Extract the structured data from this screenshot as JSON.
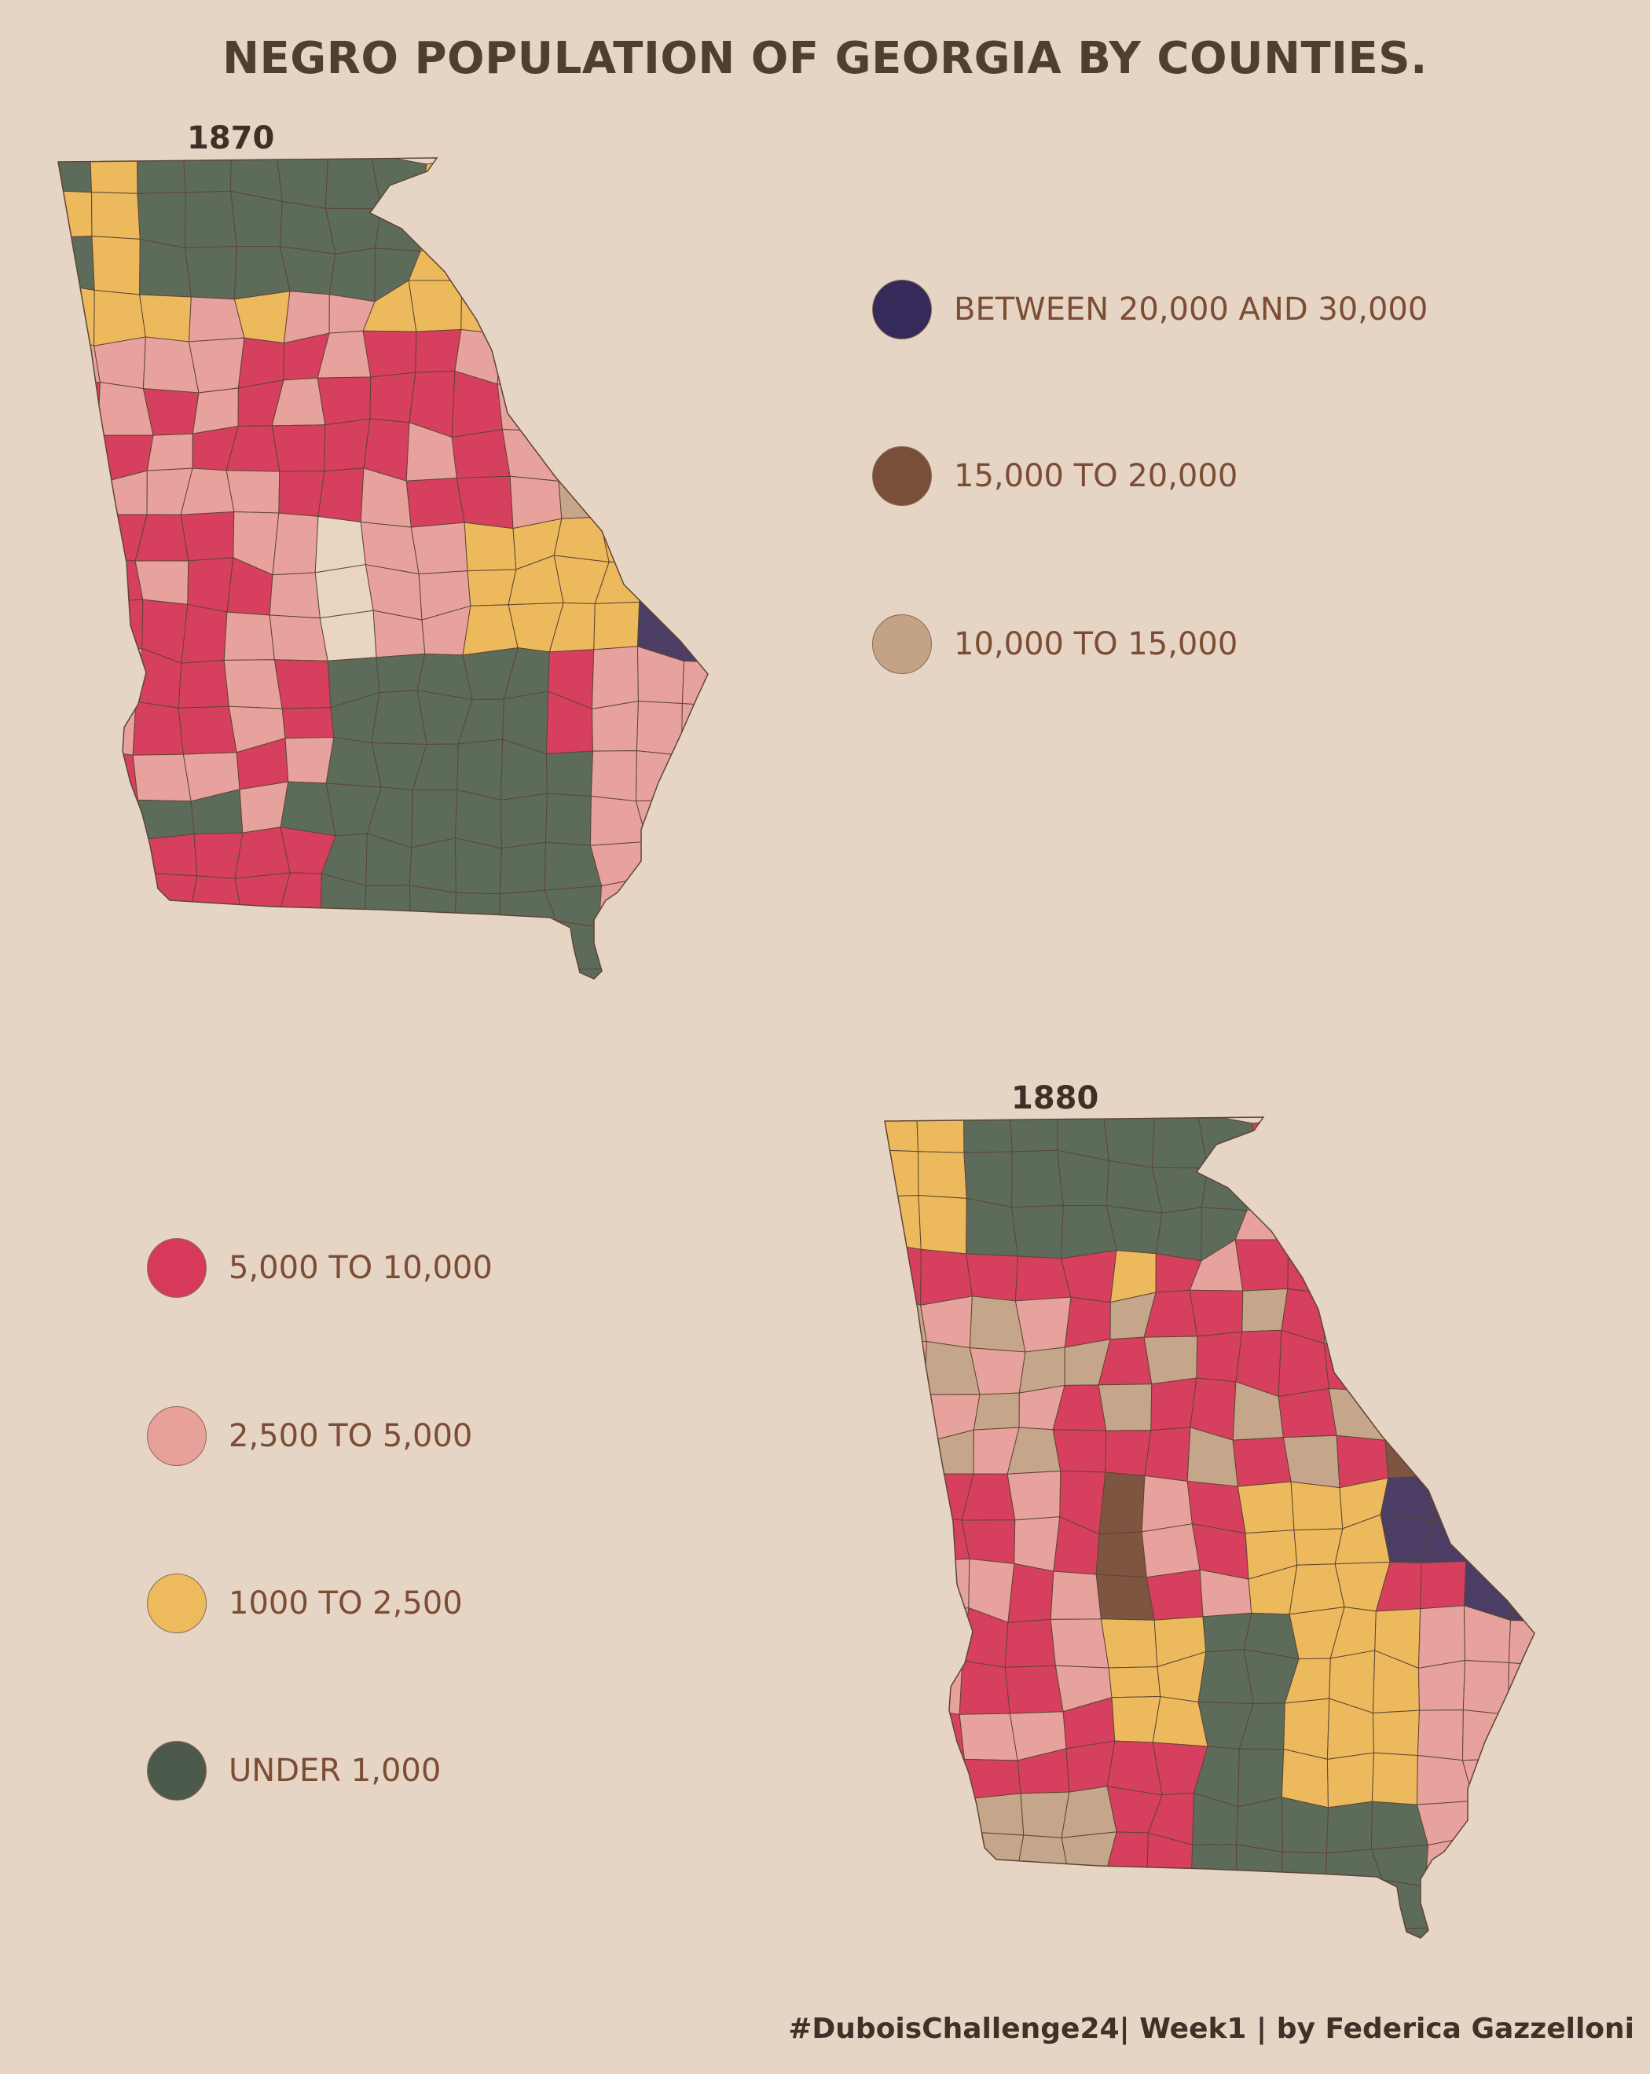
{
  "title": "NEGRO POPULATION OF GEORGIA BY COUNTIES.",
  "maps": [
    {
      "year": "1870"
    },
    {
      "year": "1880"
    }
  ],
  "legend": [
    {
      "label": "BETWEEN 20,000 AND 30,000",
      "color": "#352a5a"
    },
    {
      "label": "15,000 TO 20,000",
      "color": "#7a4f3a"
    },
    {
      "label": "10,000 TO 15,000",
      "color": "#c4a286"
    },
    {
      "label": "5,000 TO 10,000",
      "color": "#d6395a"
    },
    {
      "label": "2,500 TO 5,000",
      "color": "#e8a09b"
    },
    {
      "label": "1000 TO 2,500",
      "color": "#edbb5d"
    },
    {
      "label": "UNDER 1,000",
      "color": "#4c5a4b"
    }
  ],
  "colors": {
    "background": "#e6d5c5",
    "county_border": "#5e4534",
    "map_purple": "#4b3d63",
    "map_brown": "#7d5540",
    "map_tan": "#c5a68b",
    "map_red": "#d73f5e",
    "map_pink": "#e8a29d",
    "map_yellow": "#ecb95d",
    "map_green": "#5d6b5b",
    "map_blank": "#e8d6c2"
  },
  "footer": "#DuboisChallenge24| Week1 | by Federica Gazzelloni"
}
